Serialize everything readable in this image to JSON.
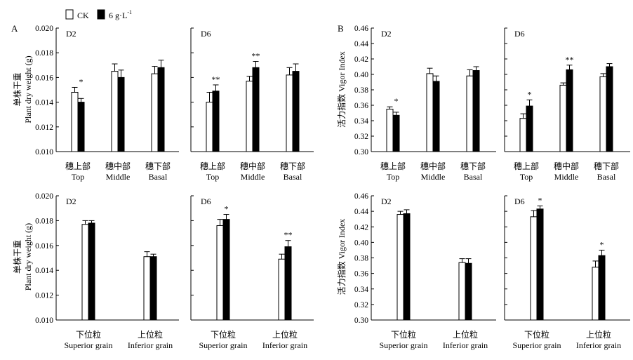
{
  "legend": {
    "ck_label": "CK",
    "treat_label": "6 g·L",
    "treat_sup": "-1"
  },
  "panel_letters": {
    "a": "A",
    "b": "B"
  },
  "y_axis_labels": {
    "weight_zh": "单株干重",
    "weight_en": "Plant dry weight (g)",
    "vigor_zh": "活力指数",
    "vigor_en": "Vigor Index"
  },
  "chart_data": [
    {
      "id": "A-top-D2",
      "type": "bar",
      "panel_label": "D2",
      "categories_zh": [
        "穗上部",
        "穗中部",
        "穗下部"
      ],
      "categories_en": [
        "Top",
        "Middle",
        "Basal"
      ],
      "ylim": [
        0.01,
        0.02
      ],
      "yticks": [
        "0.010",
        "0.012",
        "0.014",
        "0.016",
        "0.018",
        "0.020"
      ],
      "series": [
        {
          "name": "CK",
          "values": [
            0.0148,
            0.0165,
            0.0163
          ],
          "errors": [
            0.0004,
            0.0006,
            0.0006
          ]
        },
        {
          "name": "6 g·L-1",
          "values": [
            0.014,
            0.016,
            0.0168
          ],
          "errors": [
            0.0003,
            0.0006,
            0.0006
          ]
        }
      ],
      "significance": [
        "*",
        "",
        ""
      ]
    },
    {
      "id": "A-top-D6",
      "type": "bar",
      "panel_label": "D6",
      "categories_zh": [
        "穗上部",
        "穗中部",
        "穗下部"
      ],
      "categories_en": [
        "Top",
        "Middle",
        "Basal"
      ],
      "ylim": [
        0.01,
        0.02
      ],
      "yticks": [
        "0.010",
        "0.012",
        "0.014",
        "0.016",
        "0.018",
        "0.020"
      ],
      "series": [
        {
          "name": "CK",
          "values": [
            0.014,
            0.0157,
            0.0162
          ],
          "errors": [
            0.0008,
            0.0004,
            0.0006
          ]
        },
        {
          "name": "6 g·L-1",
          "values": [
            0.0149,
            0.0168,
            0.0165
          ],
          "errors": [
            0.0005,
            0.0005,
            0.0006
          ]
        }
      ],
      "significance": [
        "**",
        "**",
        ""
      ]
    },
    {
      "id": "A-bottom-D2",
      "type": "bar",
      "panel_label": "D2",
      "categories_zh": [
        "下位粒",
        "上位粒"
      ],
      "categories_en": [
        "Superior grain",
        "Inferior grain"
      ],
      "ylim": [
        0.01,
        0.02
      ],
      "yticks": [
        "0.010",
        "0.012",
        "0.014",
        "0.016",
        "0.018",
        "0.020"
      ],
      "series": [
        {
          "name": "CK",
          "values": [
            0.0177,
            0.0151
          ],
          "errors": [
            0.0003,
            0.0004
          ]
        },
        {
          "name": "6 g·L-1",
          "values": [
            0.0178,
            0.0151
          ],
          "errors": [
            0.0002,
            0.0002
          ]
        }
      ],
      "significance": [
        "",
        ""
      ]
    },
    {
      "id": "A-bottom-D6",
      "type": "bar",
      "panel_label": "D6",
      "categories_zh": [
        "下位粒",
        "上位粒"
      ],
      "categories_en": [
        "Superior grain",
        "Inferior grain"
      ],
      "ylim": [
        0.01,
        0.02
      ],
      "yticks": [
        "0.010",
        "0.012",
        "0.014",
        "0.016",
        "0.018",
        "0.020"
      ],
      "series": [
        {
          "name": "CK",
          "values": [
            0.0176,
            0.0149
          ],
          "errors": [
            0.0005,
            0.0004
          ]
        },
        {
          "name": "6 g·L-1",
          "values": [
            0.0181,
            0.0159
          ],
          "errors": [
            0.0004,
            0.0005
          ]
        }
      ],
      "significance": [
        "*",
        "**"
      ]
    },
    {
      "id": "B-top-D2",
      "type": "bar",
      "panel_label": "D2",
      "categories_zh": [
        "穗上部",
        "穗中部",
        "穗下部"
      ],
      "categories_en": [
        "Top",
        "Middle",
        "Basal"
      ],
      "ylim": [
        0.3,
        0.46
      ],
      "yticks": [
        "0.30",
        "0.32",
        "0.34",
        "0.36",
        "0.38",
        "0.40",
        "0.42",
        "0.44",
        "0.46"
      ],
      "series": [
        {
          "name": "CK",
          "values": [
            0.355,
            0.401,
            0.398
          ],
          "errors": [
            0.003,
            0.007,
            0.008
          ]
        },
        {
          "name": "6 g·L-1",
          "values": [
            0.347,
            0.391,
            0.405
          ],
          "errors": [
            0.004,
            0.007,
            0.005
          ]
        }
      ],
      "significance": [
        "*",
        "",
        ""
      ]
    },
    {
      "id": "B-top-D6",
      "type": "bar",
      "panel_label": "D6",
      "categories_zh": [
        "穗上部",
        "穗中部",
        "穗下部"
      ],
      "categories_en": [
        "Top",
        "Middle",
        "Basal"
      ],
      "ylim": [
        0.3,
        0.46
      ],
      "yticks": [
        "0.30",
        "0.32",
        "0.34",
        "0.36",
        "0.38",
        "0.40",
        "0.42",
        "0.44",
        "0.46"
      ],
      "series": [
        {
          "name": "CK",
          "values": [
            0.343,
            0.386,
            0.397
          ],
          "errors": [
            0.006,
            0.003,
            0.004
          ]
        },
        {
          "name": "6 g·L-1",
          "values": [
            0.359,
            0.406,
            0.41
          ],
          "errors": [
            0.008,
            0.006,
            0.004
          ]
        }
      ],
      "significance": [
        "*",
        "**",
        ""
      ]
    },
    {
      "id": "B-bottom-D2",
      "type": "bar",
      "panel_label": "D2",
      "categories_zh": [
        "下位粒",
        "上位粒"
      ],
      "categories_en": [
        "Superior grain",
        "Inferior grain"
      ],
      "ylim": [
        0.3,
        0.46
      ],
      "yticks": [
        "0.30",
        "0.32",
        "0.34",
        "0.36",
        "0.38",
        "0.40",
        "0.42",
        "0.44",
        "0.46"
      ],
      "series": [
        {
          "name": "CK",
          "values": [
            0.436,
            0.374
          ],
          "errors": [
            0.004,
            0.005
          ]
        },
        {
          "name": "6 g·L-1",
          "values": [
            0.437,
            0.373
          ],
          "errors": [
            0.005,
            0.006
          ]
        }
      ],
      "significance": [
        "",
        ""
      ]
    },
    {
      "id": "B-bottom-D6",
      "type": "bar",
      "panel_label": "D6",
      "categories_zh": [
        "下位粒",
        "上位粒"
      ],
      "categories_en": [
        "Superior grain",
        "Inferior grain"
      ],
      "ylim": [
        0.3,
        0.46
      ],
      "yticks": [
        "0.30",
        "0.32",
        "0.34",
        "0.36",
        "0.38",
        "0.40",
        "0.42",
        "0.44",
        "0.46"
      ],
      "series": [
        {
          "name": "CK",
          "values": [
            0.433,
            0.368
          ],
          "errors": [
            0.008,
            0.008
          ]
        },
        {
          "name": "6 g·L-1",
          "values": [
            0.443,
            0.383
          ],
          "errors": [
            0.004,
            0.007
          ]
        }
      ],
      "significance": [
        "*",
        "*"
      ]
    }
  ]
}
